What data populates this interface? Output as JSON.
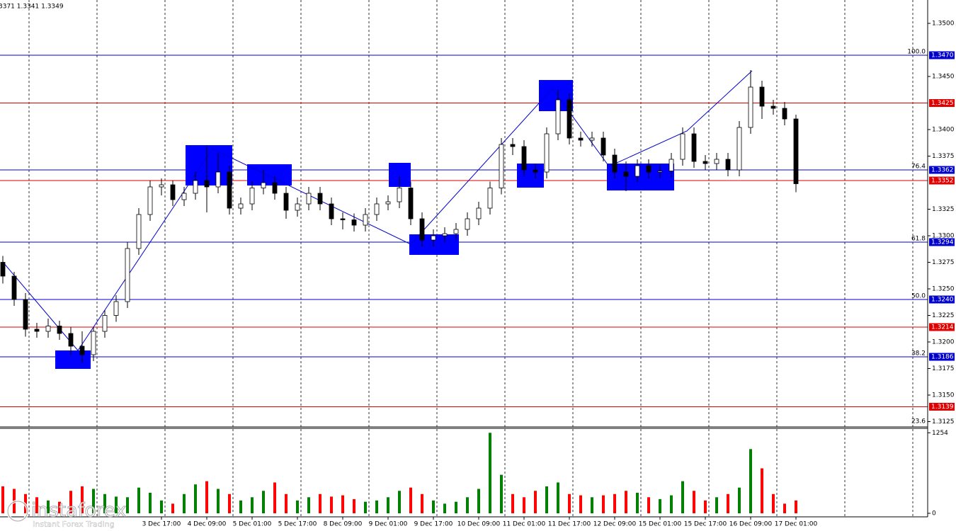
{
  "chart_data": {
    "type": "candlestick",
    "header": "3371 1.3341 1.3349",
    "ylim": [
      1.312,
      1.3522
    ],
    "yticks": [
      {
        "value": 1.35,
        "label": "1.3500"
      },
      {
        "value": 1.345,
        "label": "1.3450"
      },
      {
        "value": 1.34,
        "label": "1.3400"
      },
      {
        "value": 1.3375,
        "label": "1.3375"
      },
      {
        "value": 1.3325,
        "label": "1.3325"
      },
      {
        "value": 1.33,
        "label": "1.3300"
      },
      {
        "value": 1.3275,
        "label": "1.3275"
      },
      {
        "value": 1.325,
        "label": "1.3250"
      },
      {
        "value": 1.3225,
        "label": "1.3225"
      },
      {
        "value": 1.32,
        "label": "1.3200"
      },
      {
        "value": 1.3175,
        "label": "1.3175"
      },
      {
        "value": 1.315,
        "label": "1.3150"
      },
      {
        "value": 1.3125,
        "label": "1.3125"
      }
    ],
    "xticks": [
      {
        "value": 14,
        "label": "3 Dec 17:00"
      },
      {
        "value": 18,
        "label": "4 Dec 09:00"
      },
      {
        "value": 22,
        "label": "5 Dec 01:00"
      },
      {
        "value": 26,
        "label": "5 Dec 17:00"
      },
      {
        "value": 30,
        "label": "8 Dec 09:00"
      },
      {
        "value": 34,
        "label": "9 Dec 01:00"
      },
      {
        "value": 38,
        "label": "9 Dec 17:00"
      },
      {
        "value": 42,
        "label": "10 Dec 09:00"
      },
      {
        "value": 46,
        "label": "11 Dec 01:00"
      },
      {
        "value": 50,
        "label": "11 Dec 17:00"
      },
      {
        "value": 54,
        "label": "12 Dec 09:00"
      },
      {
        "value": 58,
        "label": "15 Dec 01:00"
      },
      {
        "value": 62,
        "label": "15 Dec 17:00"
      },
      {
        "value": 66,
        "label": "16 Dec 09:00"
      },
      {
        "value": 70,
        "label": "17 Dec 01:00"
      }
    ],
    "levels": [
      {
        "value": 1.347,
        "label": "1.3470",
        "color": "#0000cc"
      },
      {
        "value": 1.3425,
        "label": "1.3425",
        "color": "#e00000"
      },
      {
        "value": 1.3362,
        "label": "1.3362",
        "color": "#0000cc"
      },
      {
        "value": 1.3352,
        "label": "1.3352",
        "color": "#e00000"
      },
      {
        "value": 1.3294,
        "label": "1.3294",
        "color": "#0000cc"
      },
      {
        "value": 1.324,
        "label": "1.3240",
        "color": "#0000cc"
      },
      {
        "value": 1.3214,
        "label": "1.3214",
        "color": "#e00000"
      },
      {
        "value": 1.3186,
        "label": "1.3186",
        "color": "#0000cc"
      },
      {
        "value": 1.3139,
        "label": "1.3139",
        "color": "#e00000"
      }
    ],
    "fib_labels": [
      {
        "value": 1.347,
        "label": "100.0"
      },
      {
        "value": 1.3362,
        "label": "76.4"
      },
      {
        "value": 1.3294,
        "label": "61.8"
      },
      {
        "value": 1.324,
        "label": "50.0"
      },
      {
        "value": 1.3186,
        "label": "38.2"
      },
      {
        "value": 1.3122,
        "label": "23.6"
      }
    ],
    "ohlc": [
      [
        1.3275,
        1.3281,
        1.3255,
        1.3262
      ],
      [
        1.3262,
        1.3266,
        1.3234,
        1.324
      ],
      [
        1.324,
        1.3246,
        1.3205,
        1.3212
      ],
      [
        1.3212,
        1.3218,
        1.3204,
        1.321
      ],
      [
        1.321,
        1.3222,
        1.3204,
        1.3215
      ],
      [
        1.3215,
        1.322,
        1.3202,
        1.3208
      ],
      [
        1.3208,
        1.3214,
        1.3188,
        1.3196
      ],
      [
        1.3196,
        1.321,
        1.318,
        1.3188
      ],
      [
        1.3188,
        1.3214,
        1.3182,
        1.321
      ],
      [
        1.321,
        1.323,
        1.3204,
        1.3225
      ],
      [
        1.3225,
        1.3244,
        1.3219,
        1.3238
      ],
      [
        1.3238,
        1.3294,
        1.3232,
        1.3288
      ],
      [
        1.3288,
        1.3326,
        1.3282,
        1.332
      ],
      [
        1.332,
        1.3352,
        1.3314,
        1.3346
      ],
      [
        1.3346,
        1.3354,
        1.3338,
        1.3348
      ],
      [
        1.3348,
        1.3352,
        1.3328,
        1.3334
      ],
      [
        1.3334,
        1.3346,
        1.3328,
        1.334
      ],
      [
        1.334,
        1.336,
        1.3334,
        1.3352
      ],
      [
        1.3352,
        1.3385,
        1.3322,
        1.3346
      ],
      [
        1.3346,
        1.3378,
        1.334,
        1.336
      ],
      [
        1.336,
        1.3366,
        1.332,
        1.3326
      ],
      [
        1.3326,
        1.3336,
        1.332,
        1.333
      ],
      [
        1.333,
        1.3351,
        1.3324,
        1.3345
      ],
      [
        1.3345,
        1.3362,
        1.3339,
        1.335
      ],
      [
        1.335,
        1.3356,
        1.3334,
        1.334
      ],
      [
        1.334,
        1.3346,
        1.3316,
        1.3324
      ],
      [
        1.3324,
        1.3336,
        1.3318,
        1.333
      ],
      [
        1.333,
        1.3346,
        1.3324,
        1.334
      ],
      [
        1.334,
        1.3346,
        1.3324,
        1.333
      ],
      [
        1.333,
        1.3336,
        1.331,
        1.3316
      ],
      [
        1.3316,
        1.3322,
        1.3306,
        1.3315
      ],
      [
        1.3315,
        1.3321,
        1.3304,
        1.331
      ],
      [
        1.331,
        1.3326,
        1.3304,
        1.332
      ],
      [
        1.332,
        1.3336,
        1.3314,
        1.333
      ],
      [
        1.333,
        1.3338,
        1.3324,
        1.3332
      ],
      [
        1.3332,
        1.3356,
        1.3326,
        1.3345
      ],
      [
        1.3345,
        1.3351,
        1.331,
        1.3316
      ],
      [
        1.3316,
        1.3322,
        1.329,
        1.3296
      ],
      [
        1.3296,
        1.3306,
        1.329,
        1.33
      ],
      [
        1.33,
        1.3308,
        1.3294,
        1.3302
      ],
      [
        1.3302,
        1.3312,
        1.3296,
        1.3306
      ],
      [
        1.3306,
        1.3322,
        1.33,
        1.3316
      ],
      [
        1.3316,
        1.3332,
        1.331,
        1.3326
      ],
      [
        1.3326,
        1.3351,
        1.332,
        1.3345
      ],
      [
        1.3345,
        1.3392,
        1.3339,
        1.3386
      ],
      [
        1.3386,
        1.3392,
        1.3376,
        1.3384
      ],
      [
        1.3384,
        1.339,
        1.3356,
        1.3362
      ],
      [
        1.3362,
        1.3368,
        1.3354,
        1.336
      ],
      [
        1.336,
        1.3402,
        1.3354,
        1.3396
      ],
      [
        1.3396,
        1.3438,
        1.339,
        1.3428
      ],
      [
        1.3428,
        1.3434,
        1.3386,
        1.3392
      ],
      [
        1.3392,
        1.3398,
        1.3384,
        1.339
      ],
      [
        1.339,
        1.3398,
        1.3384,
        1.3392
      ],
      [
        1.3392,
        1.3398,
        1.337,
        1.3376
      ],
      [
        1.3376,
        1.3382,
        1.3354,
        1.336
      ],
      [
        1.336,
        1.337,
        1.3342,
        1.3356
      ],
      [
        1.3356,
        1.3372,
        1.335,
        1.3366
      ],
      [
        1.3366,
        1.3372,
        1.3354,
        1.336
      ],
      [
        1.336,
        1.3367,
        1.3354,
        1.3361
      ],
      [
        1.3361,
        1.3378,
        1.3355,
        1.3372
      ],
      [
        1.3372,
        1.3402,
        1.3366,
        1.3396
      ],
      [
        1.3396,
        1.3402,
        1.3364,
        1.337
      ],
      [
        1.337,
        1.3376,
        1.3362,
        1.3368
      ],
      [
        1.3368,
        1.3378,
        1.3362,
        1.3372
      ],
      [
        1.3372,
        1.3378,
        1.3356,
        1.3362
      ],
      [
        1.3362,
        1.3408,
        1.3356,
        1.3402
      ],
      [
        1.3402,
        1.3456,
        1.3396,
        1.344
      ],
      [
        1.344,
        1.3446,
        1.341,
        1.3422
      ],
      [
        1.3422,
        1.3428,
        1.3414,
        1.342
      ],
      [
        1.342,
        1.3426,
        1.3404,
        1.341
      ],
      [
        1.341,
        1.3414,
        1.3341,
        1.3349
      ]
    ],
    "up_color": "#008000",
    "down_color": "#ff0000",
    "volume": {
      "ylim": [
        0,
        1290
      ],
      "yticks": [
        0,
        1254
      ],
      "values": [
        420,
        380,
        300,
        250,
        200,
        180,
        350,
        420,
        380,
        300,
        260,
        250,
        400,
        320,
        200,
        150,
        300,
        450,
        500,
        380,
        300,
        200,
        250,
        350,
        480,
        300,
        200,
        250,
        300,
        260,
        280,
        220,
        180,
        200,
        250,
        350,
        400,
        300,
        200,
        150,
        180,
        250,
        380,
        1254,
        600,
        300,
        250,
        350,
        420,
        480,
        300,
        280,
        250,
        280,
        300,
        350,
        320,
        250,
        220,
        280,
        500,
        350,
        200,
        250,
        300,
        400,
        1000,
        700,
        300,
        150,
        200
      ]
    },
    "watermark": {
      "brand": "instaforex",
      "tagline": "Instant Forex Trading"
    }
  }
}
